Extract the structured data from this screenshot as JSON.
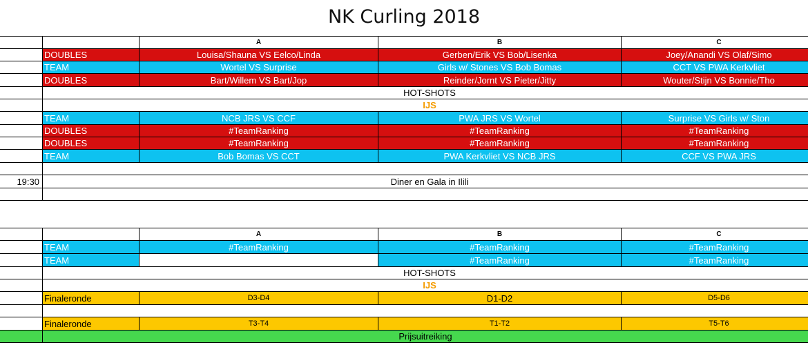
{
  "title": "NK Curling 2018",
  "colors": {
    "doubles": "#d60f0f",
    "team": "#0ec2f0",
    "finale": "#fdc800",
    "prize": "#46d84e",
    "ijs": "#f59c00"
  },
  "section1": {
    "headers": [
      "A",
      "B",
      "C"
    ],
    "rows": [
      {
        "type": "DOUBLES",
        "a": "Louisa/Shauna VS Eelco/Linda",
        "b": "Gerben/Erik VS Bob/Lisenka",
        "c": "Joey/Anandi VS Olaf/Simo"
      },
      {
        "type": "TEAM",
        "a": "Wortel VS Surprise",
        "b": "Girls w/ Stones VS Bob Bomas",
        "c": "CCT VS PWA Kerkvliet"
      },
      {
        "type": "DOUBLES",
        "a": "Bart/Willem VS Bart/Jop",
        "b": "Reinder/Jornt VS Pieter/Jitty",
        "c": "Wouter/Stijn VS Bonnie/Tho"
      }
    ],
    "hotshots": "HOT-SHOTS",
    "ijs": "IJS",
    "rows2": [
      {
        "type": "TEAM",
        "a": "NCB JRS  VS CCF",
        "b": "PWA JRS  VS Wortel",
        "c": "Surprise  VS  Girls w/ Ston"
      },
      {
        "type": "DOUBLES",
        "a": "#TeamRanking",
        "b": "#TeamRanking",
        "c": "#TeamRanking"
      },
      {
        "type": "DOUBLES",
        "a": "#TeamRanking",
        "b": "#TeamRanking",
        "c": "#TeamRanking"
      },
      {
        "type": "TEAM",
        "a": "Bob Bomas  VS  CCT",
        "b": "PWA Kerkvliet  VS  NCB JRS",
        "c": "CCF  VS  PWA JRS"
      }
    ],
    "dinner_time": "19:30",
    "dinner": "Diner en Gala in Ilili"
  },
  "section2": {
    "headers": [
      "A",
      "B",
      "C"
    ],
    "rows": [
      {
        "type": "TEAM",
        "a": "#TeamRanking",
        "b": "#TeamRanking",
        "c": "#TeamRanking"
      },
      {
        "type": "TEAM",
        "a": "",
        "b": "#TeamRanking",
        "c": "#TeamRanking"
      }
    ],
    "hotshots": "HOT-SHOTS",
    "ijs": "IJS",
    "finale1": {
      "type": "Finaleronde",
      "a": "D3-D4",
      "b": "D1-D2",
      "c": "D5-D6"
    },
    "finale2": {
      "type": "Finaleronde",
      "a": "T3-T4",
      "b": "T1-T2",
      "c": "T5-T6"
    },
    "prize": "Prijsuitreiking"
  }
}
